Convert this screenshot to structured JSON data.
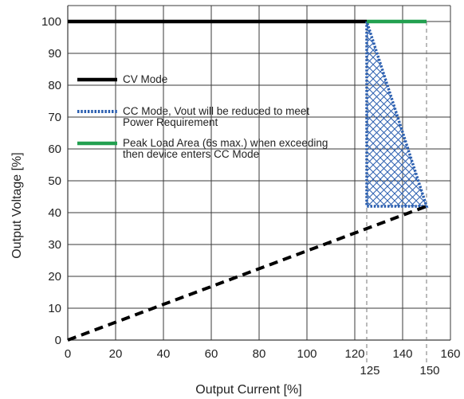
{
  "chart_data": {
    "type": "line",
    "xlabel": "Output Current [%]",
    "ylabel": "Output Voltage  [%]",
    "xlim": [
      0,
      160
    ],
    "ylim": [
      0,
      105
    ],
    "x_ticks": [
      0,
      20,
      40,
      60,
      80,
      100,
      120,
      140,
      160
    ],
    "y_ticks": [
      0,
      10,
      20,
      30,
      40,
      50,
      60,
      70,
      80,
      90,
      100
    ],
    "grid": true,
    "marker_values": [
      "125",
      "150"
    ],
    "legend_position": "middle-left",
    "series": [
      {
        "name": "CV Mode",
        "style": "solid",
        "color": "#000000",
        "x": [
          0,
          125
        ],
        "y": [
          100,
          100
        ]
      },
      {
        "name": "CC Mode, Vout will be reduced to meet Power Requirement",
        "style": "dotted",
        "color": "#2b5fb0",
        "x": [
          125,
          125,
          150,
          125
        ],
        "y": [
          100,
          42,
          42,
          100
        ]
      },
      {
        "name": "Peak Load Area (6s max.) when exceeding then device enters CC Mode",
        "style": "solid",
        "color": "#22a050",
        "x": [
          125,
          150
        ],
        "y": [
          100,
          100
        ]
      },
      {
        "style": "dashed",
        "color": "#000000",
        "x": [
          0,
          150
        ],
        "y": [
          0,
          42
        ]
      }
    ],
    "hatched_region": {
      "x": [
        125,
        125,
        150
      ],
      "y": [
        100,
        42,
        42
      ],
      "color": "#2b5fb0"
    },
    "legend": [
      {
        "label_lines": [
          "CV Mode"
        ],
        "color": "#000000",
        "style": "solid"
      },
      {
        "label_lines": [
          "CC Mode, Vout will be reduced to meet",
          "Power Requirement"
        ],
        "color": "#2b5fb0",
        "style": "dotted"
      },
      {
        "label_lines": [
          "Peak Load Area (6s max.) when exceeding",
          "then device enters CC Mode"
        ],
        "color": "#22a050",
        "style": "solid"
      }
    ]
  }
}
